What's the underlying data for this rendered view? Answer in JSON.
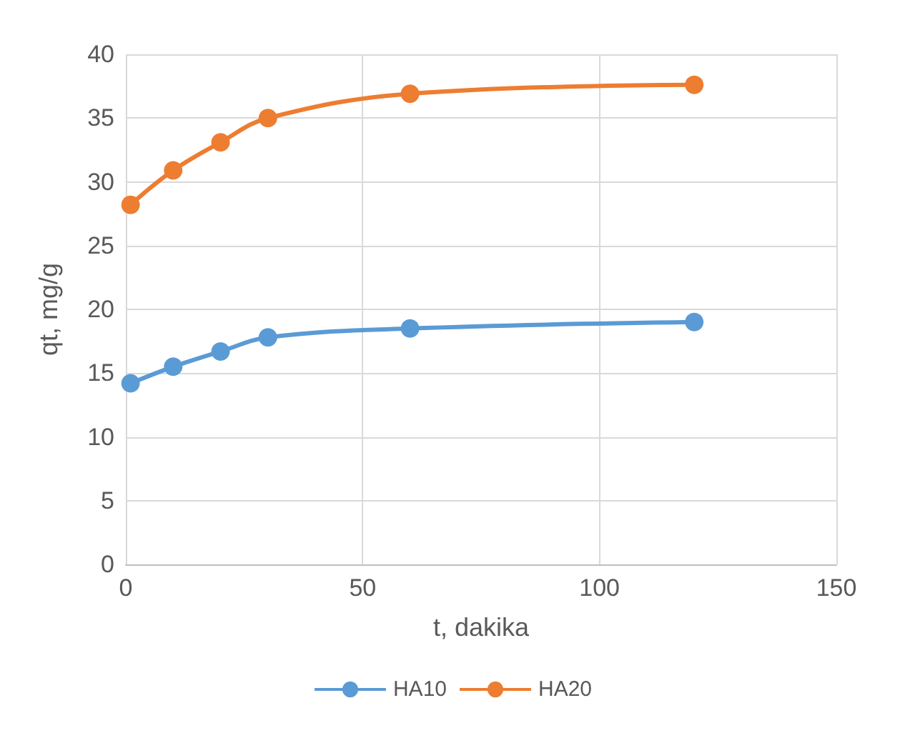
{
  "chart_data": {
    "type": "line",
    "xlabel": "t, dakika",
    "ylabel": "qt, mg/g",
    "x": [
      1,
      10,
      20,
      30,
      60,
      120
    ],
    "series": [
      {
        "name": "HA10",
        "color": "#5b9bd5",
        "values": [
          14.2,
          15.5,
          16.7,
          17.8,
          18.5,
          19.0
        ]
      },
      {
        "name": "HA20",
        "color": "#ed7d31",
        "values": [
          28.2,
          30.9,
          33.1,
          35.0,
          36.9,
          37.6
        ]
      }
    ],
    "xlim": [
      0,
      150
    ],
    "xticks": [
      0,
      50,
      100,
      150
    ],
    "ylim": [
      0,
      40
    ],
    "yticks": [
      0,
      5,
      10,
      15,
      20,
      25,
      30,
      35,
      40
    ],
    "grid": true,
    "legend": "bottom",
    "marker": "circle",
    "line_style": "solid"
  }
}
